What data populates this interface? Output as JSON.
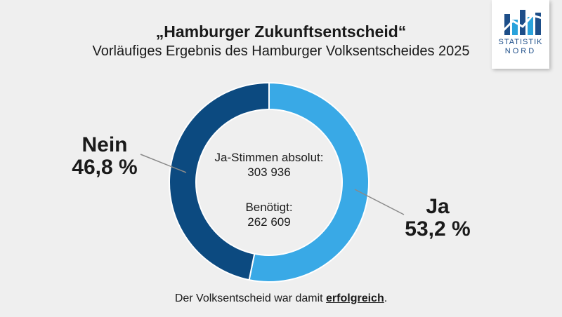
{
  "logo": {
    "line1": "STATISTIK",
    "line2": "NORD",
    "colors": {
      "dark": "#1d4e89",
      "light": "#2aa3dc"
    }
  },
  "chart_data": {
    "type": "pie",
    "title": "„Hamburger Zukunftsentscheid“",
    "subtitle": "Vorläufiges Ergebnis des Hamburger Volksentscheides 2025",
    "slices": [
      {
        "name": "Ja",
        "value": 53.2,
        "label": "53,2 %",
        "color": "#39a9e6"
      },
      {
        "name": "Nein",
        "value": 46.8,
        "label": "46,8 %",
        "color": "#0c4a80"
      }
    ],
    "center": {
      "line1": "Ja-Stimmen absolut:",
      "line2": "303 936",
      "line3": "Benötigt:",
      "line4": "262 609"
    }
  },
  "footer": {
    "prefix": "Der Volksentscheid war damit ",
    "emphasis": "erfolgreich",
    "suffix": "."
  }
}
